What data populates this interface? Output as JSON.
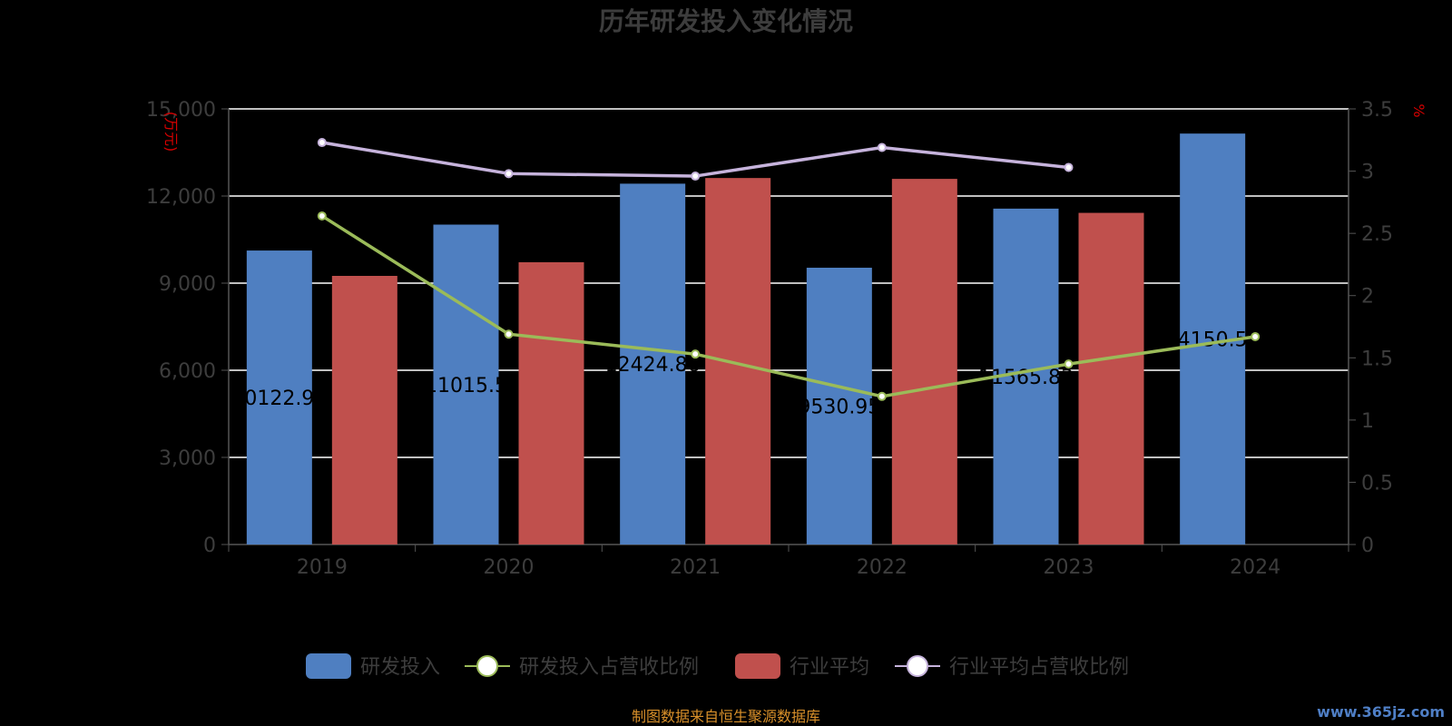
{
  "chart_data": {
    "type": "bar",
    "title": "历年研发投入变化情况",
    "categories": [
      "2019",
      "2020",
      "2021",
      "2022",
      "2023",
      "2024"
    ],
    "y_left": {
      "unit": "(万元)",
      "ylim": [
        0,
        15000
      ],
      "ticks": [
        "0",
        "3,000",
        "6,000",
        "9,000",
        "12,000",
        "15,000"
      ]
    },
    "y_right": {
      "unit": "%",
      "ylim": [
        0,
        3.5
      ],
      "ticks": [
        "0",
        "0.5",
        "1",
        "1.5",
        "2",
        "2.5",
        "3",
        "3.5"
      ]
    },
    "series": [
      {
        "name": "研发投入",
        "kind": "bar",
        "axis": "left",
        "color": "#4f7fc1",
        "values": [
          10122.98,
          11015.5,
          12424.86,
          9530.95,
          11565.83,
          14150.58
        ]
      },
      {
        "name": "行业平均",
        "kind": "bar",
        "axis": "left",
        "color": "#c0504d",
        "values": [
          9250,
          9720,
          12620,
          12590,
          11420,
          null
        ]
      },
      {
        "name": "研发投入占营收比例",
        "kind": "line",
        "axis": "right",
        "color": "#9bbb59",
        "values": [
          2.64,
          1.69,
          1.53,
          1.19,
          1.45,
          1.67
        ]
      },
      {
        "name": "行业平均占营收比例",
        "kind": "line",
        "axis": "right",
        "color": "#c6b3dc",
        "values": [
          3.23,
          2.98,
          2.96,
          3.19,
          3.03,
          null
        ]
      }
    ],
    "data_labels": [
      "10122.98",
      "11015.5",
      "12424.86",
      "9530.95",
      "11565.83",
      "14150.58"
    ],
    "grid": true,
    "legend_position": "bottom"
  },
  "source_note": "制图数据来自恒生聚源数据库",
  "watermark": "www.365jz.com"
}
